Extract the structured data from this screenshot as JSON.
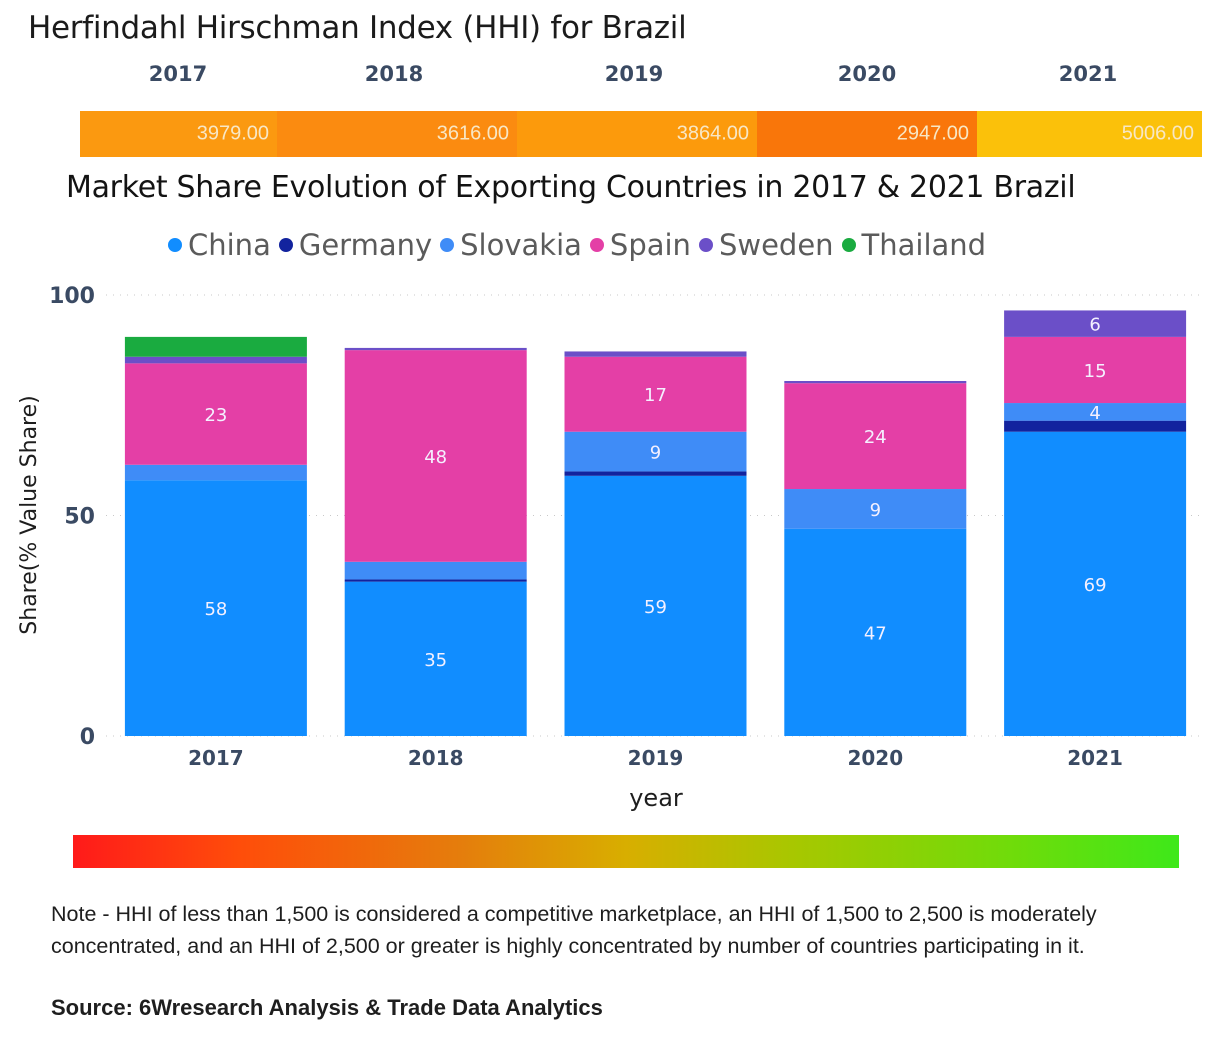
{
  "hhi": {
    "title": "Herfindahl Hirschman Index (HHI) for Brazil",
    "years": [
      "2017",
      "2018",
      "2019",
      "2020",
      "2021"
    ],
    "values": [
      "3979.00",
      "3616.00",
      "3864.00",
      "2947.00",
      "5006.00"
    ],
    "colors": [
      "#fb9910",
      "#fb8b10",
      "#fc9a0c",
      "#f9760a",
      "#fbc10a"
    ]
  },
  "chart_data": {
    "type": "bar",
    "stacked": true,
    "title": "Market Share Evolution of Exporting Countries in 2017 & 2021 Brazil",
    "xlabel": "year",
    "ylabel": "Share(% Value Share)",
    "categories": [
      "2017",
      "2018",
      "2019",
      "2020",
      "2021"
    ],
    "ylim": [
      0,
      100
    ],
    "yticks": [
      0,
      50,
      100
    ],
    "grid": true,
    "legend_position": "top",
    "series": [
      {
        "name": "China",
        "color": "#118dff",
        "values": [
          58,
          35,
          59,
          47,
          69
        ],
        "labels": [
          "58",
          "35",
          "59",
          "47",
          "69"
        ]
      },
      {
        "name": "Germany",
        "color": "#12239e",
        "values": [
          0,
          0.5,
          1,
          0,
          2.5
        ],
        "labels": [
          "",
          "",
          "",
          "",
          ""
        ]
      },
      {
        "name": "Slovakia",
        "color": "#3f8cf7",
        "values": [
          3.5,
          4,
          9,
          9,
          4
        ],
        "labels": [
          "",
          "",
          "9",
          "9",
          "4"
        ]
      },
      {
        "name": "Spain",
        "color": "#e43fa6",
        "values": [
          23,
          48,
          17,
          24,
          15
        ],
        "labels": [
          "23",
          "48",
          "17",
          "24",
          "15"
        ]
      },
      {
        "name": "Sweden",
        "color": "#6b4fc8",
        "values": [
          1.5,
          0.5,
          1.2,
          0.5,
          6
        ],
        "labels": [
          "",
          "",
          "",
          "",
          "6"
        ]
      },
      {
        "name": "Thailand",
        "color": "#1aab40",
        "values": [
          4.5,
          0,
          0,
          0,
          0
        ],
        "labels": [
          "",
          "",
          "",
          "",
          ""
        ]
      }
    ]
  },
  "note": "Note - HHI of less than 1,500 is considered a competitive marketplace, an HHI of 1,500 to 2,500 is moderately concentrated, and an HHI of 2,500 or greater is highly concentrated by number of countries participating in it.",
  "source": "Source: 6Wresearch Analysis & Trade Data Analytics",
  "gradient_scale": {
    "from_color": "#ff1a1a",
    "to_color": "#3ee81a"
  }
}
